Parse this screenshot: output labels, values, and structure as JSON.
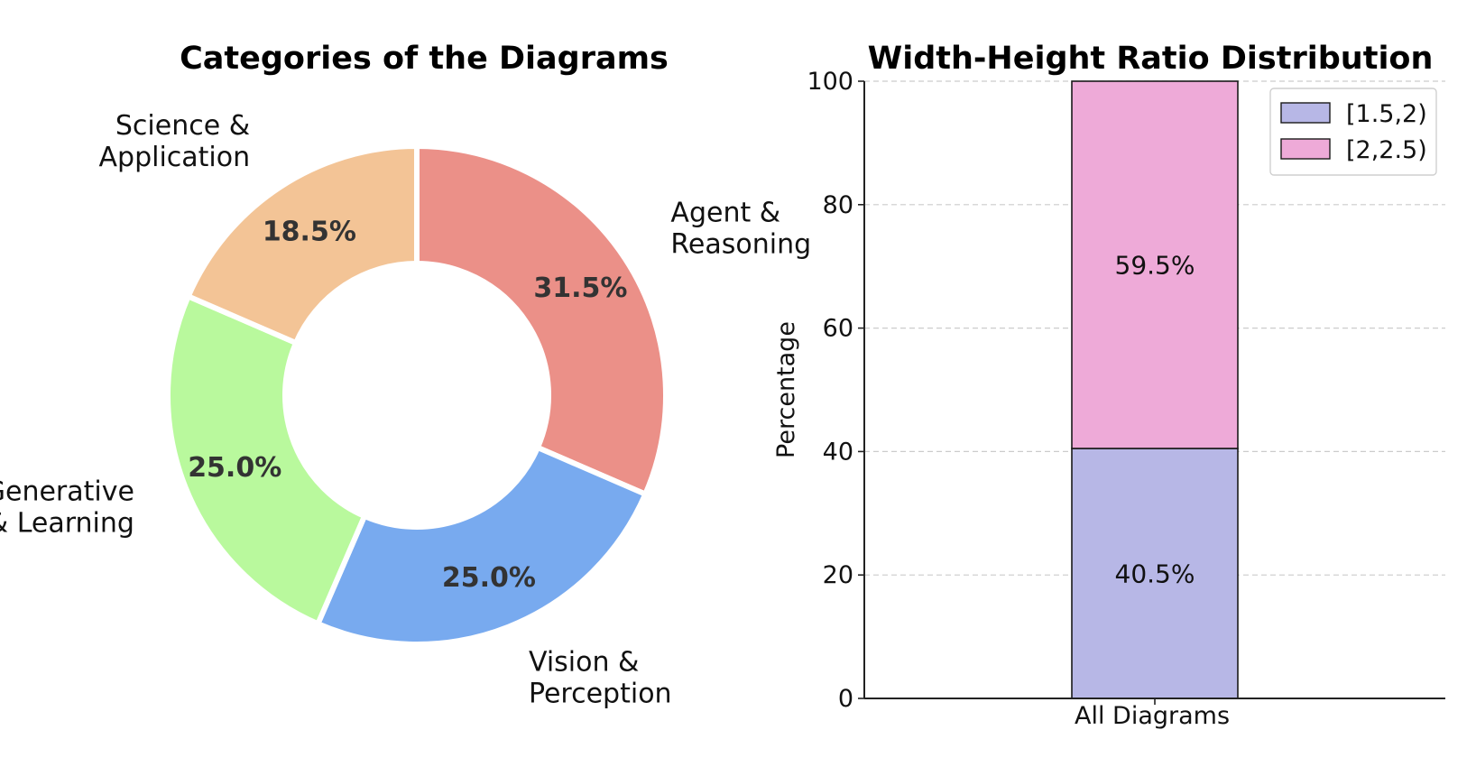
{
  "chart_data": [
    {
      "type": "pie",
      "variant": "donut",
      "title": "Categories of the Diagrams",
      "slices": [
        {
          "label_lines": [
            "Agent &",
            "Reasoning"
          ],
          "value": 31.5,
          "value_label": "31.5%",
          "color": "#eb9088"
        },
        {
          "label_lines": [
            "Vision &",
            "Perception"
          ],
          "value": 25.0,
          "value_label": "25.0%",
          "color": "#78aaef"
        },
        {
          "label_lines": [
            "Generative",
            "& Learning"
          ],
          "value": 25.0,
          "value_label": "25.0%",
          "color": "#b9f99d"
        },
        {
          "label_lines": [
            "Science &",
            "Application"
          ],
          "value": 18.5,
          "value_label": "18.5%",
          "color": "#f3c496"
        }
      ]
    },
    {
      "type": "bar",
      "variant": "stacked",
      "title": "Width-Height Ratio Distribution",
      "categories": [
        "All Diagrams"
      ],
      "ylabel": "Percentage",
      "xlabel": "",
      "ylim": [
        0,
        100
      ],
      "yticks": [
        "0",
        "20",
        "40",
        "60",
        "80",
        "100"
      ],
      "grid": true,
      "legend_position": "top-right",
      "series": [
        {
          "name": "[1.5,2)",
          "values": [
            40.5
          ],
          "value_labels": [
            "40.5%"
          ],
          "color": "#b7b7e6"
        },
        {
          "name": "[2,2.5)",
          "values": [
            59.5
          ],
          "value_labels": [
            "59.5%"
          ],
          "color": "#eeaad8"
        }
      ]
    }
  ]
}
